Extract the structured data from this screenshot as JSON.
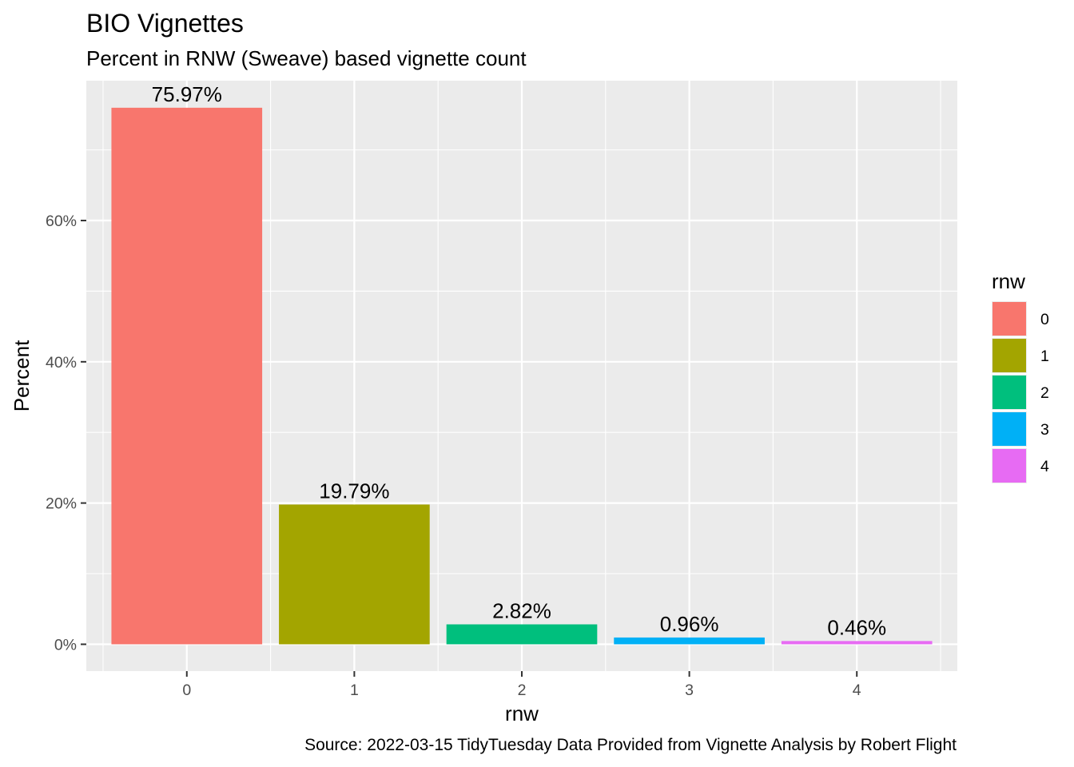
{
  "chart_data": {
    "type": "bar",
    "title": "BIO Vignettes",
    "subtitle": "Percent in RNW (Sweave) based vignette count",
    "caption": "Source: 2022-03-15 TidyTuesday  Data Provided from Vignette Analysis by Robert Flight",
    "xlabel": "rnw",
    "ylabel": "Percent",
    "categories": [
      "0",
      "1",
      "2",
      "3",
      "4"
    ],
    "values": [
      75.97,
      19.79,
      2.82,
      0.96,
      0.46
    ],
    "data_labels": [
      "75.97%",
      "19.79%",
      "2.82%",
      "0.96%",
      "0.46%"
    ],
    "ylim": [
      -3.8,
      79.8
    ],
    "yticks": [
      0,
      20,
      40,
      60
    ],
    "ytick_labels": [
      "0%",
      "20%",
      "40%",
      "60%"
    ],
    "grid": true,
    "legend": {
      "title": "rnw",
      "placement": "right",
      "entries": [
        "0",
        "1",
        "2",
        "3",
        "4"
      ]
    },
    "colors": [
      "#F8766D",
      "#A3A500",
      "#00BF7D",
      "#00B0F6",
      "#E76BF3"
    ],
    "panel_background": "#EBEBEB",
    "grid_color": "#FFFFFF"
  }
}
